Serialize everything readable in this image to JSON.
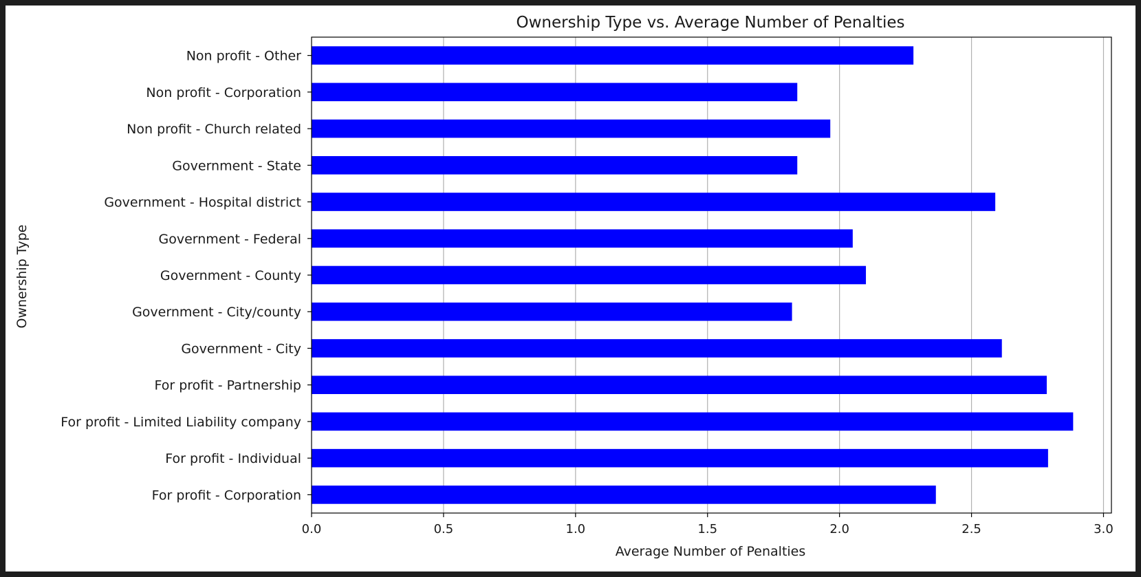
{
  "chart_data": {
    "type": "bar",
    "orientation": "horizontal",
    "title": "Ownership Type vs. Average Number of Penalties",
    "xlabel": "Average Number of Penalties",
    "ylabel": "Ownership Type",
    "xlim": [
      0,
      3.0
    ],
    "x_ticks": [
      "0.0",
      "0.5",
      "1.0",
      "1.5",
      "2.0",
      "2.5",
      "3.0"
    ],
    "x_tick_values": [
      0,
      0.5,
      1.0,
      1.5,
      2.0,
      2.5,
      3.0
    ],
    "grid": "vertical",
    "bar_color": "#0000ff",
    "categories": [
      "Non profit - Other",
      "Non profit - Corporation",
      "Non profit - Church related",
      "Government - State",
      "Government - Hospital district",
      "Government - Federal",
      "Government - County",
      "Government - City/county",
      "Government - City",
      "For profit - Partnership",
      "For profit - Limited Liability company",
      "For profit - Individual",
      "For profit - Corporation"
    ],
    "values": [
      2.28,
      1.84,
      1.965,
      1.84,
      2.59,
      2.05,
      2.1,
      1.82,
      2.615,
      2.785,
      2.885,
      2.79,
      2.365
    ]
  }
}
